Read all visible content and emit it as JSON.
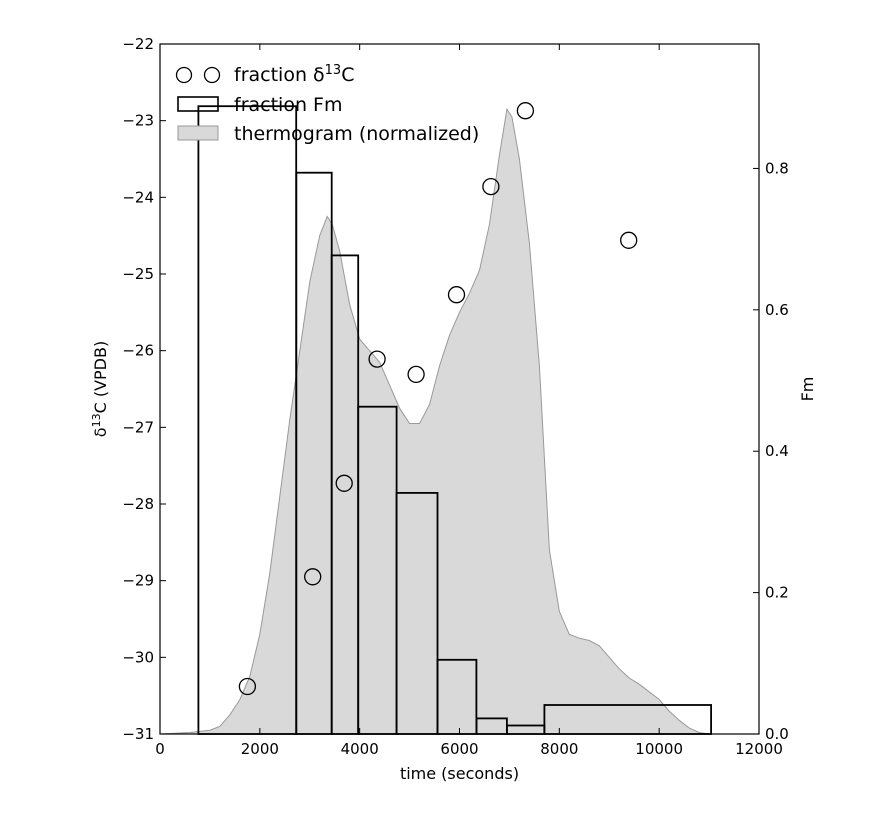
{
  "chart_data": {
    "type": "combo",
    "xlabel": "time (seconds)",
    "ylabel_left_main": "δ",
    "ylabel_left_sup": "13",
    "ylabel_left_rest": "C (VPDB)",
    "ylabel_right": "Fm",
    "xlim": [
      0,
      12000
    ],
    "ylim_left": [
      -31,
      -22
    ],
    "ylim_right": [
      0.0,
      0.976
    ],
    "x_ticks": [
      0,
      2000,
      4000,
      6000,
      8000,
      10000,
      12000
    ],
    "x_tick_labels": [
      "0",
      "2000",
      "4000",
      "6000",
      "8000",
      "10000",
      "12000"
    ],
    "y_left_ticks": [
      -31,
      -30,
      -29,
      -28,
      -27,
      -26,
      -25,
      -24,
      -23,
      -22
    ],
    "y_left_tick_labels": [
      "−31",
      "−30",
      "−29",
      "−28",
      "−27",
      "−26",
      "−25",
      "−24",
      "−23",
      "−22"
    ],
    "y_right_ticks": [
      0.0,
      0.2,
      0.4,
      0.6,
      0.8
    ],
    "y_right_tick_labels": [
      "0.0",
      "0.2",
      "0.4",
      "0.6",
      "0.8"
    ],
    "legend": {
      "placement": "top-left",
      "fraction_d13c_main": "fraction δ",
      "fraction_d13c_sup": "13",
      "fraction_d13c_rest": "C",
      "fraction_fm": "fraction Fm",
      "thermogram": "thermogram (normalized)"
    },
    "fraction_d13c": [
      {
        "x": 1750,
        "y": -30.38
      },
      {
        "x": 3060,
        "y": -28.95
      },
      {
        "x": 3690,
        "y": -27.73
      },
      {
        "x": 4350,
        "y": -26.11
      },
      {
        "x": 5130,
        "y": -26.31
      },
      {
        "x": 5940,
        "y": -25.27
      },
      {
        "x": 6630,
        "y": -23.86
      },
      {
        "x": 7320,
        "y": -22.87
      },
      {
        "x": 9390,
        "y": -24.56
      }
    ],
    "fraction_fm": [
      {
        "x0": 770,
        "x1": 2730,
        "fm": 0.888
      },
      {
        "x0": 2730,
        "x1": 3440,
        "fm": 0.794
      },
      {
        "x0": 3440,
        "x1": 3970,
        "fm": 0.677
      },
      {
        "x0": 3970,
        "x1": 4740,
        "fm": 0.463
      },
      {
        "x0": 4740,
        "x1": 5560,
        "fm": 0.341
      },
      {
        "x0": 5560,
        "x1": 6340,
        "fm": 0.105
      },
      {
        "x0": 6340,
        "x1": 6950,
        "fm": 0.022
      },
      {
        "x0": 6950,
        "x1": 7700,
        "fm": 0.012
      },
      {
        "x0": 7700,
        "x1": 11040,
        "fm": 0.041
      }
    ],
    "thermogram": {
      "x": [
        0,
        600,
        1000,
        1200,
        1400,
        1600,
        1800,
        2000,
        2200,
        2400,
        2600,
        2800,
        3000,
        3200,
        3350,
        3450,
        3600,
        3800,
        4000,
        4200,
        4400,
        4600,
        4800,
        5000,
        5200,
        5400,
        5600,
        5800,
        6000,
        6200,
        6400,
        6600,
        6800,
        6950,
        7050,
        7200,
        7400,
        7600,
        7800,
        8000,
        8200,
        8400,
        8600,
        8800,
        9000,
        9200,
        9400,
        9600,
        9800,
        10000,
        10200,
        10400,
        10600,
        10800,
        11000
      ],
      "y": [
        -31,
        -30.98,
        -30.95,
        -30.9,
        -30.75,
        -30.55,
        -30.25,
        -29.7,
        -28.9,
        -27.9,
        -26.9,
        -26.0,
        -25.1,
        -24.5,
        -24.25,
        -24.35,
        -24.7,
        -25.4,
        -25.85,
        -26.0,
        -26.15,
        -26.45,
        -26.75,
        -26.95,
        -26.95,
        -26.7,
        -26.2,
        -25.8,
        -25.5,
        -25.25,
        -24.95,
        -24.35,
        -23.45,
        -22.85,
        -22.95,
        -23.5,
        -24.6,
        -26.2,
        -28.6,
        -29.4,
        -29.7,
        -29.75,
        -29.78,
        -29.85,
        -30.0,
        -30.15,
        -30.27,
        -30.35,
        -30.45,
        -30.55,
        -30.7,
        -30.82,
        -30.92,
        -30.98,
        -31.0
      ]
    },
    "colors": {
      "thermogram_fill": "#d9d9d9",
      "thermogram_edge": "#999999",
      "bars_edge": "#000000",
      "markers_edge": "#000000"
    }
  }
}
